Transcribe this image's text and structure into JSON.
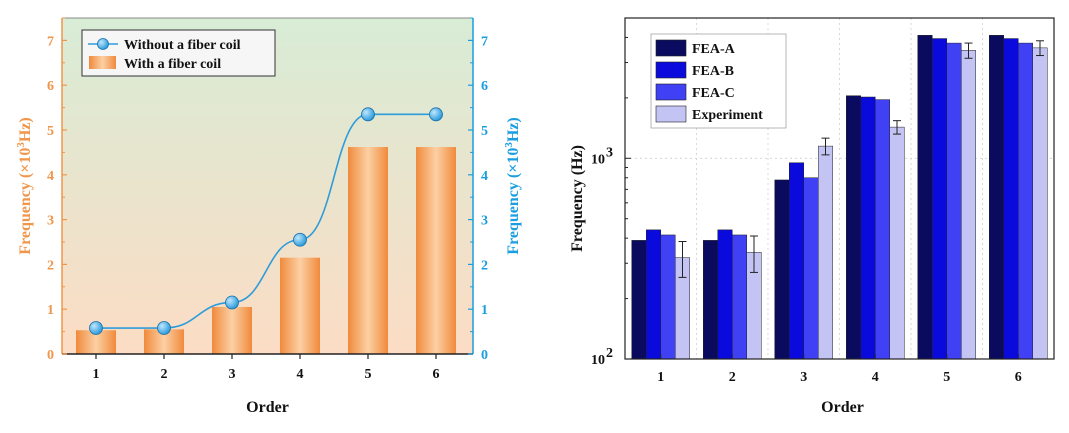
{
  "colors": {
    "orange_axis": "#f0964a",
    "blue_axis": "#1a9ee0",
    "bar_fill_light": "#fcd0a4",
    "bar_fill_dark": "#f08a3c",
    "line_blue": "#2d9cdb",
    "bg_top": "#d8ecd6",
    "bg_bottom": "#fcdcc4",
    "fea_a": "#0a0a5e",
    "fea_b": "#0a0adc",
    "fea_c": "#4040f4",
    "experiment": "#c4c4f4"
  },
  "chart_data": [
    {
      "type": "bar",
      "categories": [
        "1",
        "2",
        "3",
        "4",
        "5",
        "6"
      ],
      "series": [
        {
          "name": "Without a fiber coil",
          "type": "line",
          "axis": "right",
          "values": [
            0.58,
            0.58,
            1.15,
            2.55,
            5.35,
            5.35
          ]
        },
        {
          "name": "With a fiber coil",
          "type": "bar",
          "axis": "left",
          "values": [
            0.53,
            0.55,
            1.05,
            2.15,
            4.62,
            4.62
          ]
        }
      ],
      "xlabel": "Order",
      "ylabel_prefix": "Frequency (×10",
      "ylabel_sup": "3",
      "ylabel_suffix": "Hz)",
      "ylim": [
        0,
        7.5
      ],
      "yticks": [
        "0",
        "1",
        "2",
        "3",
        "4",
        "5",
        "6",
        "7"
      ],
      "legend_position": "top-left",
      "grid": false
    },
    {
      "type": "bar",
      "categories": [
        "1",
        "2",
        "3",
        "4",
        "5",
        "6"
      ],
      "series": [
        {
          "name": "FEA-A",
          "values": [
            390,
            390,
            780,
            2050,
            4100,
            4100
          ]
        },
        {
          "name": "FEA-B",
          "values": [
            440,
            440,
            950,
            2020,
            3950,
            3950
          ]
        },
        {
          "name": "FEA-C",
          "values": [
            415,
            415,
            800,
            1960,
            3750,
            3750
          ]
        },
        {
          "name": "Experiment",
          "values": [
            320,
            340,
            1150,
            1430,
            3450,
            3550
          ],
          "errors": [
            65,
            70,
            110,
            110,
            300,
            300
          ]
        }
      ],
      "xlabel": "Order",
      "ylabel": "Frequency (Hz)",
      "yscale": "log",
      "ylim": [
        100,
        5000
      ],
      "yticks": [
        {
          "base": "10",
          "exp": "2"
        },
        {
          "base": "10",
          "exp": "3"
        }
      ],
      "legend_position": "top-left",
      "grid": true
    }
  ]
}
